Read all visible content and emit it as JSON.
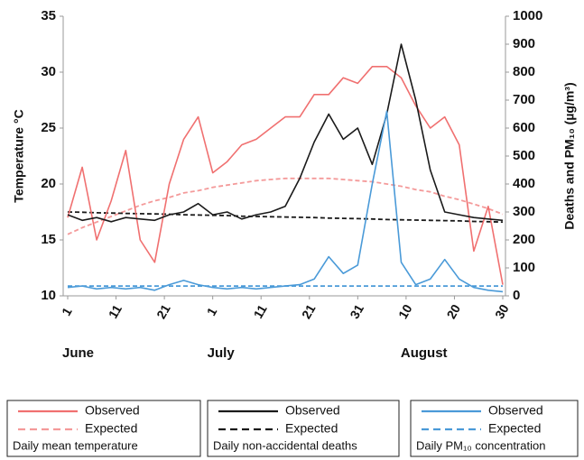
{
  "chart_data": {
    "type": "line",
    "y_label": "Temperature  °C",
    "y2_label": "Deaths and PM₁₀ (µg/m³)",
    "x": [
      1,
      4,
      7,
      10,
      13,
      16,
      19,
      22,
      25,
      28,
      31,
      34,
      37,
      40,
      43,
      46,
      49,
      52,
      55,
      58,
      61,
      64,
      67,
      70,
      73,
      76,
      79,
      82,
      85,
      88,
      91
    ],
    "xlim": [
      1,
      91
    ],
    "xticks": [
      {
        "value": 1,
        "label": "1"
      },
      {
        "value": 11,
        "label": "11"
      },
      {
        "value": 21,
        "label": "21"
      },
      {
        "value": 31,
        "label": "1"
      },
      {
        "value": 41,
        "label": "11"
      },
      {
        "value": 51,
        "label": "21"
      },
      {
        "value": 61,
        "label": "31"
      },
      {
        "value": 71,
        "label": "10"
      },
      {
        "value": 81,
        "label": "20"
      },
      {
        "value": 91,
        "label": "30"
      }
    ],
    "month_labels": [
      {
        "value": 1,
        "label": "June"
      },
      {
        "value": 31,
        "label": "July"
      },
      {
        "value": 71,
        "label": "August"
      }
    ],
    "ylim": [
      10,
      35
    ],
    "yticks": [
      10,
      15,
      20,
      25,
      30,
      35
    ],
    "y2lim": [
      0,
      1000
    ],
    "y2ticks": [
      0,
      100,
      200,
      300,
      400,
      500,
      600,
      700,
      800,
      900,
      1000
    ],
    "grid": false,
    "legend_groups": [
      {
        "title": "Daily mean temperature",
        "series": [
          0,
          1
        ]
      },
      {
        "title": "Daily non-accidental deaths",
        "series": [
          2,
          3
        ]
      },
      {
        "title": "Daily PM₁₀ concentration",
        "series": [
          4,
          5
        ]
      }
    ],
    "series": [
      {
        "name": "Observed",
        "color": "#f07070",
        "dashed": false,
        "axis": "y",
        "values": [
          17,
          21.5,
          15,
          18.5,
          23,
          15,
          13,
          20,
          24,
          26,
          21,
          22,
          23.5,
          24,
          25,
          26,
          26,
          28,
          28,
          29.5,
          29,
          30.5,
          30.5,
          29.5,
          27,
          25,
          26,
          23.5,
          14,
          18,
          11
        ]
      },
      {
        "name": "Expected",
        "color": "#f49a9a",
        "dashed": true,
        "axis": "y",
        "values": [
          15.5,
          16.1,
          16.6,
          17.1,
          17.6,
          18.1,
          18.5,
          18.8,
          19.2,
          19.4,
          19.7,
          19.9,
          20.1,
          20.3,
          20.4,
          20.5,
          20.5,
          20.5,
          20.5,
          20.4,
          20.3,
          20.2,
          20,
          19.8,
          19.5,
          19.3,
          18.9,
          18.6,
          18.2,
          17.8,
          17.3
        ]
      },
      {
        "name": "Observed",
        "color": "#1a1a1a",
        "dashed": false,
        "axis": "y2",
        "values": [
          290,
          270,
          280,
          265,
          280,
          275,
          270,
          290,
          300,
          330,
          290,
          300,
          275,
          290,
          300,
          320,
          420,
          550,
          650,
          560,
          600,
          470,
          650,
          900,
          700,
          450,
          300,
          290,
          280,
          275,
          270
        ]
      },
      {
        "name": "Expected",
        "color": "#1a1a1a",
        "dashed": true,
        "axis": "y2",
        "values": [
          300,
          299,
          297,
          296,
          295,
          294,
          293,
          292,
          290,
          289,
          288,
          287,
          285,
          284,
          283,
          282,
          281,
          280,
          278,
          277,
          276,
          275,
          273,
          272,
          271,
          270,
          269,
          268,
          266,
          265,
          264
        ]
      },
      {
        "name": "Observed",
        "color": "#4a9ad8",
        "dashed": false,
        "axis": "y2",
        "values": [
          30,
          35,
          25,
          30,
          25,
          30,
          20,
          40,
          55,
          40,
          30,
          25,
          30,
          25,
          30,
          35,
          40,
          60,
          140,
          80,
          110,
          400,
          660,
          120,
          40,
          60,
          130,
          60,
          30,
          20,
          15
        ]
      },
      {
        "name": "Expected",
        "color": "#4a9ad8",
        "dashed": true,
        "axis": "y2",
        "values": [
          35,
          35,
          35,
          35,
          35,
          35,
          35,
          35,
          35,
          35,
          35,
          35,
          35,
          35,
          35,
          35,
          35,
          35,
          35,
          35,
          35,
          35,
          35,
          35,
          35,
          35,
          35,
          35,
          35,
          35,
          35
        ]
      }
    ]
  }
}
